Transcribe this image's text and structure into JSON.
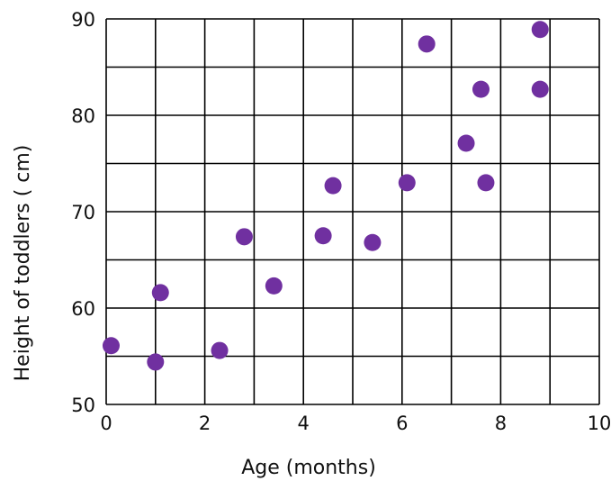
{
  "chart_data": {
    "type": "scatter",
    "title": "",
    "xlabel": "Age (months)",
    "ylabel": "Height of toddlers ( cm)",
    "xlim": [
      0,
      10
    ],
    "ylim": [
      50,
      90
    ],
    "x_ticks": [
      0,
      2,
      4,
      6,
      8,
      10
    ],
    "x_tick_labels": [
      "0",
      "2",
      "4",
      "6",
      "8",
      "10"
    ],
    "y_ticks": [
      50,
      60,
      70,
      80,
      90
    ],
    "y_tick_labels": [
      "50",
      "60",
      "70",
      "80",
      "90"
    ],
    "grid": true,
    "grid_step": {
      "x": 1,
      "y": 5
    },
    "marker_color": "#7030a0",
    "points": [
      {
        "x": 0.1,
        "y": 56.1
      },
      {
        "x": 1.0,
        "y": 54.4
      },
      {
        "x": 1.1,
        "y": 61.6
      },
      {
        "x": 2.3,
        "y": 55.6
      },
      {
        "x": 2.8,
        "y": 67.4
      },
      {
        "x": 3.4,
        "y": 62.3
      },
      {
        "x": 4.4,
        "y": 67.5
      },
      {
        "x": 4.6,
        "y": 72.7
      },
      {
        "x": 5.4,
        "y": 66.8
      },
      {
        "x": 6.1,
        "y": 73.0
      },
      {
        "x": 6.5,
        "y": 87.4
      },
      {
        "x": 7.3,
        "y": 77.1
      },
      {
        "x": 7.6,
        "y": 82.7
      },
      {
        "x": 7.7,
        "y": 73.0
      },
      {
        "x": 8.8,
        "y": 88.9
      },
      {
        "x": 8.8,
        "y": 82.7
      }
    ]
  }
}
